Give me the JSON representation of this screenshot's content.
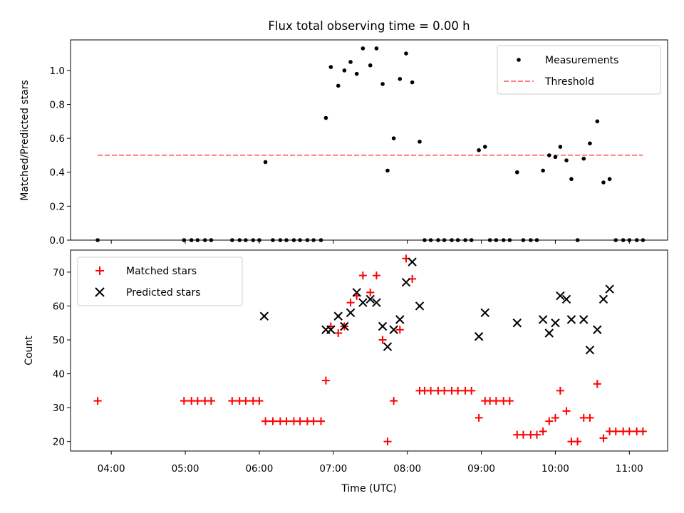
{
  "chart_data": {
    "type": "scatter",
    "title": "Flux total observing time = 0.00 h",
    "xlabel": "Time (UTC)",
    "x_unit": "hours UTC",
    "x_ticks": [
      "04:00",
      "05:00",
      "06:00",
      "07:00",
      "08:00",
      "09:00",
      "10:00",
      "11:00"
    ],
    "xlim": [
      "03:27",
      "11:31"
    ],
    "panels": [
      {
        "ylabel": "Matched/Predicted stars",
        "ylim": [
          0,
          1.18
        ],
        "y_ticks": [
          "0.0",
          "0.2",
          "0.4",
          "0.6",
          "0.8",
          "1.0"
        ],
        "legend_position": "top-right",
        "series": [
          {
            "name": "Measurements",
            "marker": "dot",
            "color": "#000000",
            "points": [
              [
                "03:49",
                0.0
              ],
              [
                "04:59",
                0.0
              ],
              [
                "05:05",
                0.0
              ],
              [
                "05:10",
                0.0
              ],
              [
                "05:16",
                0.0
              ],
              [
                "05:21",
                0.0
              ],
              [
                "05:38",
                0.0
              ],
              [
                "05:44",
                0.0
              ],
              [
                "05:49",
                0.0
              ],
              [
                "05:55",
                0.0
              ],
              [
                "06:00",
                0.0
              ],
              [
                "06:05",
                0.46
              ],
              [
                "06:11",
                0.0
              ],
              [
                "06:17",
                0.0
              ],
              [
                "06:22",
                0.0
              ],
              [
                "06:28",
                0.0
              ],
              [
                "06:33",
                0.0
              ],
              [
                "06:39",
                0.0
              ],
              [
                "06:44",
                0.0
              ],
              [
                "06:50",
                0.0
              ],
              [
                "06:54",
                0.72
              ],
              [
                "06:58",
                1.02
              ],
              [
                "07:04",
                0.91
              ],
              [
                "07:09",
                1.0
              ],
              [
                "07:14",
                1.05
              ],
              [
                "07:19",
                0.98
              ],
              [
                "07:24",
                1.13
              ],
              [
                "07:30",
                1.03
              ],
              [
                "07:35",
                1.13
              ],
              [
                "07:40",
                0.92
              ],
              [
                "07:44",
                0.41
              ],
              [
                "07:49",
                0.6
              ],
              [
                "07:54",
                0.95
              ],
              [
                "07:59",
                1.1
              ],
              [
                "08:04",
                0.93
              ],
              [
                "08:10",
                0.58
              ],
              [
                "08:14",
                0.0
              ],
              [
                "08:19",
                0.0
              ],
              [
                "08:25",
                0.0
              ],
              [
                "08:30",
                0.0
              ],
              [
                "08:36",
                0.0
              ],
              [
                "08:41",
                0.0
              ],
              [
                "08:47",
                0.0
              ],
              [
                "08:52",
                0.0
              ],
              [
                "08:58",
                0.53
              ],
              [
                "09:03",
                0.55
              ],
              [
                "09:07",
                0.0
              ],
              [
                "09:12",
                0.0
              ],
              [
                "09:18",
                0.0
              ],
              [
                "09:23",
                0.0
              ],
              [
                "09:29",
                0.4
              ],
              [
                "09:34",
                0.0
              ],
              [
                "09:40",
                0.0
              ],
              [
                "09:45",
                0.0
              ],
              [
                "09:50",
                0.41
              ],
              [
                "09:55",
                0.5
              ],
              [
                "10:00",
                0.49
              ],
              [
                "10:04",
                0.55
              ],
              [
                "10:09",
                0.47
              ],
              [
                "10:13",
                0.36
              ],
              [
                "10:18",
                0.0
              ],
              [
                "10:23",
                0.48
              ],
              [
                "10:28",
                0.57
              ],
              [
                "10:34",
                0.7
              ],
              [
                "10:39",
                0.34
              ],
              [
                "10:44",
                0.36
              ],
              [
                "10:49",
                0.0
              ],
              [
                "10:55",
                0.0
              ],
              [
                "11:00",
                0.0
              ],
              [
                "11:06",
                0.0
              ],
              [
                "11:11",
                0.0
              ]
            ]
          },
          {
            "name": "Threshold",
            "marker": "dashed-line",
            "color": "#ff7f7f",
            "points": [
              [
                "03:49",
                0.5
              ],
              [
                "11:11",
                0.5
              ]
            ]
          }
        ]
      },
      {
        "ylabel": "Count",
        "ylim": [
          17.2,
          76.5
        ],
        "y_ticks": [
          "20",
          "30",
          "40",
          "50",
          "60",
          "70"
        ],
        "legend_position": "top-left",
        "series": [
          {
            "name": "Matched stars",
            "marker": "plus",
            "color": "#ff0000",
            "points": [
              [
                "03:49",
                32
              ],
              [
                "04:59",
                32
              ],
              [
                "05:05",
                32
              ],
              [
                "05:10",
                32
              ],
              [
                "05:16",
                32
              ],
              [
                "05:21",
                32
              ],
              [
                "05:38",
                32
              ],
              [
                "05:44",
                32
              ],
              [
                "05:49",
                32
              ],
              [
                "05:55",
                32
              ],
              [
                "06:00",
                32
              ],
              [
                "06:05",
                26
              ],
              [
                "06:11",
                26
              ],
              [
                "06:17",
                26
              ],
              [
                "06:22",
                26
              ],
              [
                "06:28",
                26
              ],
              [
                "06:33",
                26
              ],
              [
                "06:39",
                26
              ],
              [
                "06:44",
                26
              ],
              [
                "06:50",
                26
              ],
              [
                "06:54",
                38
              ],
              [
                "06:58",
                54
              ],
              [
                "07:04",
                52
              ],
              [
                "07:09",
                54
              ],
              [
                "07:14",
                61
              ],
              [
                "07:19",
                63
              ],
              [
                "07:24",
                69
              ],
              [
                "07:30",
                64
              ],
              [
                "07:35",
                69
              ],
              [
                "07:40",
                50
              ],
              [
                "07:44",
                20
              ],
              [
                "07:49",
                32
              ],
              [
                "07:54",
                53
              ],
              [
                "07:59",
                74
              ],
              [
                "08:04",
                68
              ],
              [
                "08:10",
                35
              ],
              [
                "08:14",
                35
              ],
              [
                "08:19",
                35
              ],
              [
                "08:25",
                35
              ],
              [
                "08:30",
                35
              ],
              [
                "08:36",
                35
              ],
              [
                "08:41",
                35
              ],
              [
                "08:47",
                35
              ],
              [
                "08:52",
                35
              ],
              [
                "08:58",
                27
              ],
              [
                "09:03",
                32
              ],
              [
                "09:07",
                32
              ],
              [
                "09:12",
                32
              ],
              [
                "09:18",
                32
              ],
              [
                "09:23",
                32
              ],
              [
                "09:29",
                22
              ],
              [
                "09:34",
                22
              ],
              [
                "09:40",
                22
              ],
              [
                "09:45",
                22
              ],
              [
                "09:50",
                23
              ],
              [
                "09:55",
                26
              ],
              [
                "10:00",
                27
              ],
              [
                "10:04",
                35
              ],
              [
                "10:09",
                29
              ],
              [
                "10:13",
                20
              ],
              [
                "10:18",
                20
              ],
              [
                "10:23",
                27
              ],
              [
                "10:28",
                27
              ],
              [
                "10:34",
                37
              ],
              [
                "10:39",
                21
              ],
              [
                "10:44",
                23
              ],
              [
                "10:49",
                23
              ],
              [
                "10:55",
                23
              ],
              [
                "11:00",
                23
              ],
              [
                "11:06",
                23
              ],
              [
                "11:11",
                23
              ]
            ]
          },
          {
            "name": "Predicted stars",
            "marker": "x",
            "color": "#000000",
            "points": [
              [
                "06:04",
                57
              ],
              [
                "06:54",
                53
              ],
              [
                "06:58",
                53
              ],
              [
                "07:04",
                57
              ],
              [
                "07:09",
                54
              ],
              [
                "07:14",
                58
              ],
              [
                "07:19",
                64
              ],
              [
                "07:24",
                61
              ],
              [
                "07:30",
                62
              ],
              [
                "07:35",
                61
              ],
              [
                "07:40",
                54
              ],
              [
                "07:44",
                48
              ],
              [
                "07:49",
                53
              ],
              [
                "07:54",
                56
              ],
              [
                "07:59",
                67
              ],
              [
                "08:04",
                73
              ],
              [
                "08:10",
                60
              ],
              [
                "08:58",
                51
              ],
              [
                "09:03",
                58
              ],
              [
                "09:29",
                55
              ],
              [
                "09:50",
                56
              ],
              [
                "09:55",
                52
              ],
              [
                "10:00",
                55
              ],
              [
                "10:04",
                63
              ],
              [
                "10:09",
                62
              ],
              [
                "10:13",
                56
              ],
              [
                "10:23",
                56
              ],
              [
                "10:28",
                47
              ],
              [
                "10:34",
                53
              ],
              [
                "10:39",
                62
              ],
              [
                "10:44",
                65
              ]
            ]
          }
        ]
      }
    ]
  }
}
